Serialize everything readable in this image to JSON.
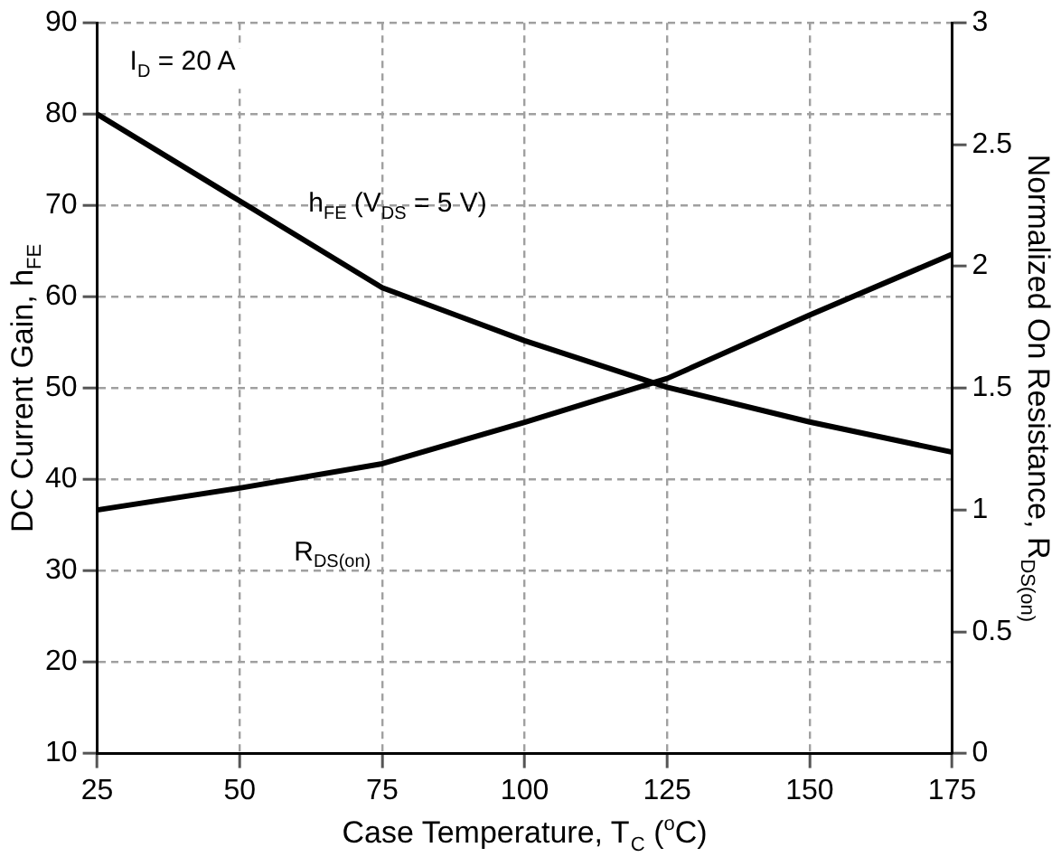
{
  "chart_data": {
    "type": "line",
    "xlabel": "Case Temperature, T$_{C}$ ($^{o}$C)",
    "ylabel": "DC Current Gain, h$_{FE}$",
    "y2label": "Normalized On Resistance, R$_{DS(on)}$",
    "annotations": [
      "I$_{D}$ = 20 A"
    ],
    "x": [
      25,
      50,
      75,
      100,
      125,
      150,
      175
    ],
    "series": [
      {
        "name": "h$_{FE}$ (V$_{DS}$ = 5 V)",
        "color": "#000000",
        "values": [
          80,
          70.5,
          61,
          55.2,
          50.1,
          46.3,
          43
        ]
      },
      {
        "name": "R$_{DS(on)}$",
        "color": "#000000",
        "axis": "y2",
        "values": [
          1.0,
          1.09,
          1.19,
          1.36,
          1.54,
          1.8,
          2.05
        ]
      }
    ],
    "xlim": [
      25,
      175
    ],
    "xticks": [
      25,
      50,
      75,
      100,
      125,
      150,
      175
    ],
    "ylim": [
      10,
      90
    ],
    "yticks": [
      10,
      20,
      30,
      40,
      50,
      60,
      70,
      80,
      90
    ],
    "y2lim": [
      0,
      3
    ],
    "y2ticks": [
      0,
      0.5,
      1,
      1.5,
      2,
      2.5,
      3
    ],
    "grid": true,
    "marker": "none",
    "line_style": "solid"
  }
}
